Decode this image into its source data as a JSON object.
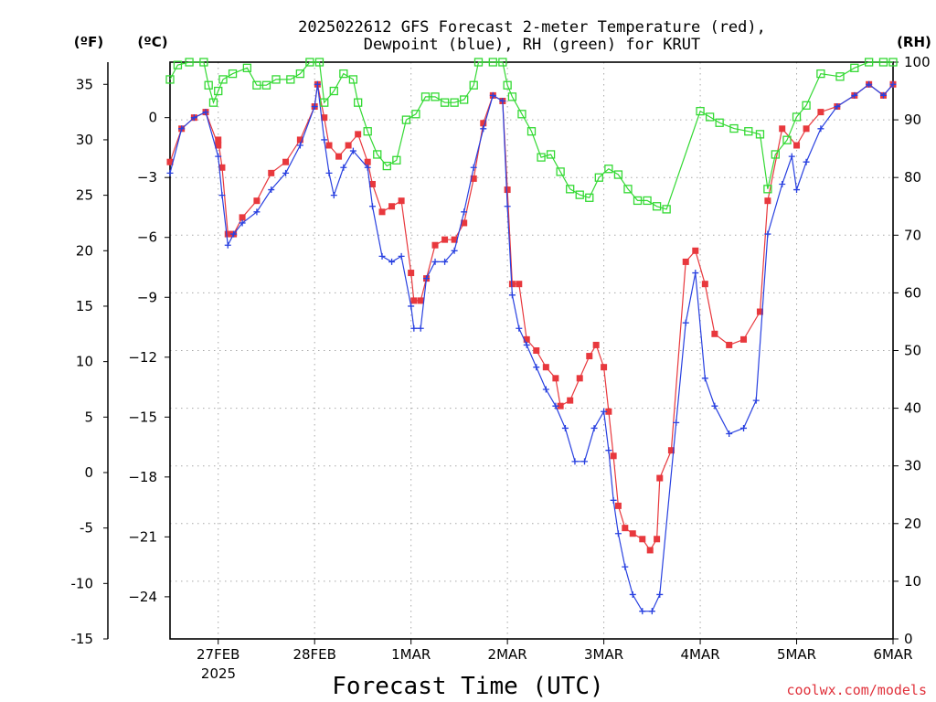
{
  "chart_data": {
    "type": "line",
    "title": "2025022612 GFS Forecast 2-meter Temperature (red),",
    "subtitle": "Dewpoint (blue), RH (green) for KRUT",
    "xlabel": "Forecast Time (UTC)",
    "credit": "coolwx.com/models",
    "left_unit_outer": "(ºF)",
    "left_unit_inner": "(ºC)",
    "right_unit": "(RH)",
    "x_start_label": "2025",
    "x_range_days": [
      -0.5,
      7.0
    ],
    "x_ticks": [
      {
        "day": 0,
        "label": "27FEB"
      },
      {
        "day": 1,
        "label": "28FEB"
      },
      {
        "day": 2,
        "label": "1MAR"
      },
      {
        "day": 3,
        "label": "2MAR"
      },
      {
        "day": 4,
        "label": "3MAR"
      },
      {
        "day": 5,
        "label": "4MAR"
      },
      {
        "day": 6,
        "label": "5MAR"
      },
      {
        "day": 7,
        "label": "6MAR"
      }
    ],
    "y_left_f": {
      "range": [
        -15,
        37
      ],
      "ticks": [
        -15,
        -10,
        -5,
        0,
        5,
        10,
        15,
        20,
        25,
        30,
        35
      ]
    },
    "y_left_c": {
      "ticks": [
        -24,
        -21,
        -18,
        -15,
        -12,
        -9,
        -6,
        -3,
        0
      ]
    },
    "y_right_rh": {
      "range": [
        0,
        100
      ],
      "ticks": [
        0,
        10,
        20,
        30,
        40,
        50,
        60,
        70,
        80,
        90,
        100
      ]
    },
    "grid": true,
    "series": [
      {
        "name": "Temperature",
        "color": "#e8383d",
        "marker": "filled-square",
        "points": [
          [
            -0.5,
            28.0
          ],
          [
            -0.38,
            31.0
          ],
          [
            -0.25,
            32.0
          ],
          [
            -0.13,
            32.5
          ],
          [
            0.0,
            29.5
          ],
          [
            0.0,
            30.0
          ],
          [
            0.04,
            27.5
          ],
          [
            0.1,
            21.5
          ],
          [
            0.16,
            21.5
          ],
          [
            0.25,
            23.0
          ],
          [
            0.4,
            24.5
          ],
          [
            0.55,
            27.0
          ],
          [
            0.7,
            28.0
          ],
          [
            0.85,
            30.0
          ],
          [
            1.0,
            33.0
          ],
          [
            1.03,
            35.0
          ],
          [
            1.1,
            32.0
          ],
          [
            1.15,
            29.5
          ],
          [
            1.25,
            28.5
          ],
          [
            1.35,
            29.5
          ],
          [
            1.45,
            30.5
          ],
          [
            1.55,
            28.0
          ],
          [
            1.6,
            26.0
          ],
          [
            1.7,
            23.5
          ],
          [
            1.8,
            24.0
          ],
          [
            1.9,
            24.5
          ],
          [
            2.0,
            18.0
          ],
          [
            2.03,
            15.5
          ],
          [
            2.1,
            15.5
          ],
          [
            2.16,
            17.5
          ],
          [
            2.25,
            20.5
          ],
          [
            2.35,
            21.0
          ],
          [
            2.45,
            21.0
          ],
          [
            2.55,
            22.5
          ],
          [
            2.65,
            26.5
          ],
          [
            2.75,
            31.5
          ],
          [
            2.85,
            34.0
          ],
          [
            2.95,
            33.5
          ],
          [
            3.0,
            25.5
          ],
          [
            3.05,
            17.0
          ],
          [
            3.12,
            17.0
          ],
          [
            3.2,
            12.0
          ],
          [
            3.3,
            11.0
          ],
          [
            3.4,
            9.5
          ],
          [
            3.5,
            8.5
          ],
          [
            3.55,
            6.0
          ],
          [
            3.65,
            6.5
          ],
          [
            3.75,
            8.5
          ],
          [
            3.85,
            10.5
          ],
          [
            3.92,
            11.5
          ],
          [
            4.0,
            9.5
          ],
          [
            4.05,
            5.5
          ],
          [
            4.1,
            1.5
          ],
          [
            4.15,
            -3.0
          ],
          [
            4.22,
            -5.0
          ],
          [
            4.3,
            -5.5
          ],
          [
            4.4,
            -6.0
          ],
          [
            4.48,
            -7.0
          ],
          [
            4.55,
            -6.0
          ],
          [
            4.58,
            -0.5
          ],
          [
            4.7,
            2.0
          ],
          [
            4.85,
            19.0
          ],
          [
            4.95,
            20.0
          ],
          [
            5.05,
            17.0
          ],
          [
            5.15,
            12.5
          ],
          [
            5.3,
            11.5
          ],
          [
            5.45,
            12.0
          ],
          [
            5.62,
            14.5
          ],
          [
            5.7,
            24.5
          ],
          [
            5.85,
            31.0
          ],
          [
            6.0,
            29.5
          ],
          [
            6.1,
            31.0
          ],
          [
            6.25,
            32.5
          ],
          [
            6.42,
            33.0
          ],
          [
            6.6,
            34.0
          ],
          [
            6.75,
            35.0
          ],
          [
            6.9,
            34.0
          ],
          [
            7.0,
            35.0
          ]
        ]
      },
      {
        "name": "Dewpoint",
        "color": "#2840e0",
        "marker": "plus",
        "points": [
          [
            -0.5,
            27.0
          ],
          [
            -0.38,
            31.0
          ],
          [
            -0.25,
            32.0
          ],
          [
            -0.13,
            32.5
          ],
          [
            0.0,
            28.5
          ],
          [
            0.04,
            25.0
          ],
          [
            0.1,
            20.5
          ],
          [
            0.16,
            21.5
          ],
          [
            0.25,
            22.5
          ],
          [
            0.4,
            23.5
          ],
          [
            0.55,
            25.5
          ],
          [
            0.7,
            27.0
          ],
          [
            0.85,
            29.5
          ],
          [
            1.0,
            33.0
          ],
          [
            1.03,
            35.0
          ],
          [
            1.1,
            30.0
          ],
          [
            1.15,
            27.0
          ],
          [
            1.2,
            25.0
          ],
          [
            1.3,
            27.5
          ],
          [
            1.4,
            29.0
          ],
          [
            1.55,
            27.5
          ],
          [
            1.6,
            24.0
          ],
          [
            1.7,
            19.5
          ],
          [
            1.8,
            19.0
          ],
          [
            1.9,
            19.5
          ],
          [
            2.0,
            15.0
          ],
          [
            2.03,
            13.0
          ],
          [
            2.1,
            13.0
          ],
          [
            2.16,
            17.5
          ],
          [
            2.25,
            19.0
          ],
          [
            2.35,
            19.0
          ],
          [
            2.45,
            20.0
          ],
          [
            2.55,
            23.5
          ],
          [
            2.65,
            27.5
          ],
          [
            2.75,
            31.0
          ],
          [
            2.85,
            34.0
          ],
          [
            2.95,
            33.5
          ],
          [
            3.0,
            24.0
          ],
          [
            3.05,
            16.0
          ],
          [
            3.12,
            13.0
          ],
          [
            3.2,
            11.5
          ],
          [
            3.3,
            9.5
          ],
          [
            3.4,
            7.5
          ],
          [
            3.5,
            6.0
          ],
          [
            3.6,
            4.0
          ],
          [
            3.7,
            1.0
          ],
          [
            3.8,
            1.0
          ],
          [
            3.9,
            4.0
          ],
          [
            4.0,
            5.5
          ],
          [
            4.05,
            2.0
          ],
          [
            4.1,
            -2.5
          ],
          [
            4.15,
            -5.5
          ],
          [
            4.22,
            -8.5
          ],
          [
            4.3,
            -11.0
          ],
          [
            4.4,
            -12.5
          ],
          [
            4.5,
            -12.5
          ],
          [
            4.58,
            -11.0
          ],
          [
            4.75,
            4.5
          ],
          [
            4.85,
            13.5
          ],
          [
            4.95,
            18.0
          ],
          [
            5.05,
            8.5
          ],
          [
            5.15,
            6.0
          ],
          [
            5.3,
            3.5
          ],
          [
            5.45,
            4.0
          ],
          [
            5.58,
            6.5
          ],
          [
            5.7,
            21.5
          ],
          [
            5.85,
            26.0
          ],
          [
            5.95,
            28.5
          ],
          [
            6.0,
            25.5
          ],
          [
            6.1,
            28.0
          ],
          [
            6.25,
            31.0
          ],
          [
            6.42,
            33.0
          ],
          [
            6.6,
            34.0
          ],
          [
            6.75,
            35.0
          ],
          [
            6.9,
            34.0
          ],
          [
            7.0,
            35.0
          ]
        ]
      },
      {
        "name": "RH",
        "color": "#33d933",
        "marker": "open-square",
        "points": [
          [
            -0.5,
            97.0
          ],
          [
            -0.42,
            99.5
          ],
          [
            -0.3,
            100.0
          ],
          [
            -0.15,
            100.0
          ],
          [
            -0.1,
            96.0
          ],
          [
            -0.05,
            93.0
          ],
          [
            0.0,
            95.0
          ],
          [
            0.05,
            97.0
          ],
          [
            0.15,
            98.0
          ],
          [
            0.3,
            99.0
          ],
          [
            0.4,
            96.0
          ],
          [
            0.5,
            96.0
          ],
          [
            0.6,
            97.0
          ],
          [
            0.75,
            97.0
          ],
          [
            0.85,
            98.0
          ],
          [
            0.95,
            100.0
          ],
          [
            1.05,
            100.0
          ],
          [
            1.1,
            93.0
          ],
          [
            1.2,
            95.0
          ],
          [
            1.3,
            98.0
          ],
          [
            1.4,
            97.0
          ],
          [
            1.45,
            93.0
          ],
          [
            1.55,
            88.0
          ],
          [
            1.65,
            84.0
          ],
          [
            1.75,
            82.0
          ],
          [
            1.85,
            83.0
          ],
          [
            1.95,
            90.0
          ],
          [
            2.05,
            91.0
          ],
          [
            2.15,
            94.0
          ],
          [
            2.25,
            94.0
          ],
          [
            2.35,
            93.0
          ],
          [
            2.45,
            93.0
          ],
          [
            2.55,
            93.5
          ],
          [
            2.65,
            96.0
          ],
          [
            2.7,
            100.0
          ],
          [
            2.85,
            100.0
          ],
          [
            2.95,
            100.0
          ],
          [
            3.0,
            96.0
          ],
          [
            3.05,
            94.0
          ],
          [
            3.15,
            91.0
          ],
          [
            3.25,
            88.0
          ],
          [
            3.35,
            83.5
          ],
          [
            3.45,
            84.0
          ],
          [
            3.55,
            81.0
          ],
          [
            3.65,
            78.0
          ],
          [
            3.75,
            77.0
          ],
          [
            3.85,
            76.5
          ],
          [
            3.95,
            80.0
          ],
          [
            4.05,
            81.5
          ],
          [
            4.15,
            80.5
          ],
          [
            4.25,
            78.0
          ],
          [
            4.35,
            76.0
          ],
          [
            4.45,
            76.0
          ],
          [
            4.55,
            75.0
          ],
          [
            4.65,
            74.5
          ],
          [
            5.0,
            91.5
          ],
          [
            5.1,
            90.5
          ],
          [
            5.2,
            89.5
          ],
          [
            5.35,
            88.5
          ],
          [
            5.5,
            88.0
          ],
          [
            5.62,
            87.5
          ],
          [
            5.7,
            78.0
          ],
          [
            5.78,
            84.0
          ],
          [
            5.9,
            86.5
          ],
          [
            6.0,
            90.5
          ],
          [
            6.1,
            92.5
          ],
          [
            6.25,
            98.0
          ],
          [
            6.45,
            97.5
          ],
          [
            6.6,
            99.0
          ],
          [
            6.75,
            100.0
          ],
          [
            6.9,
            100.0
          ],
          [
            7.0,
            100.0
          ]
        ]
      }
    ]
  }
}
